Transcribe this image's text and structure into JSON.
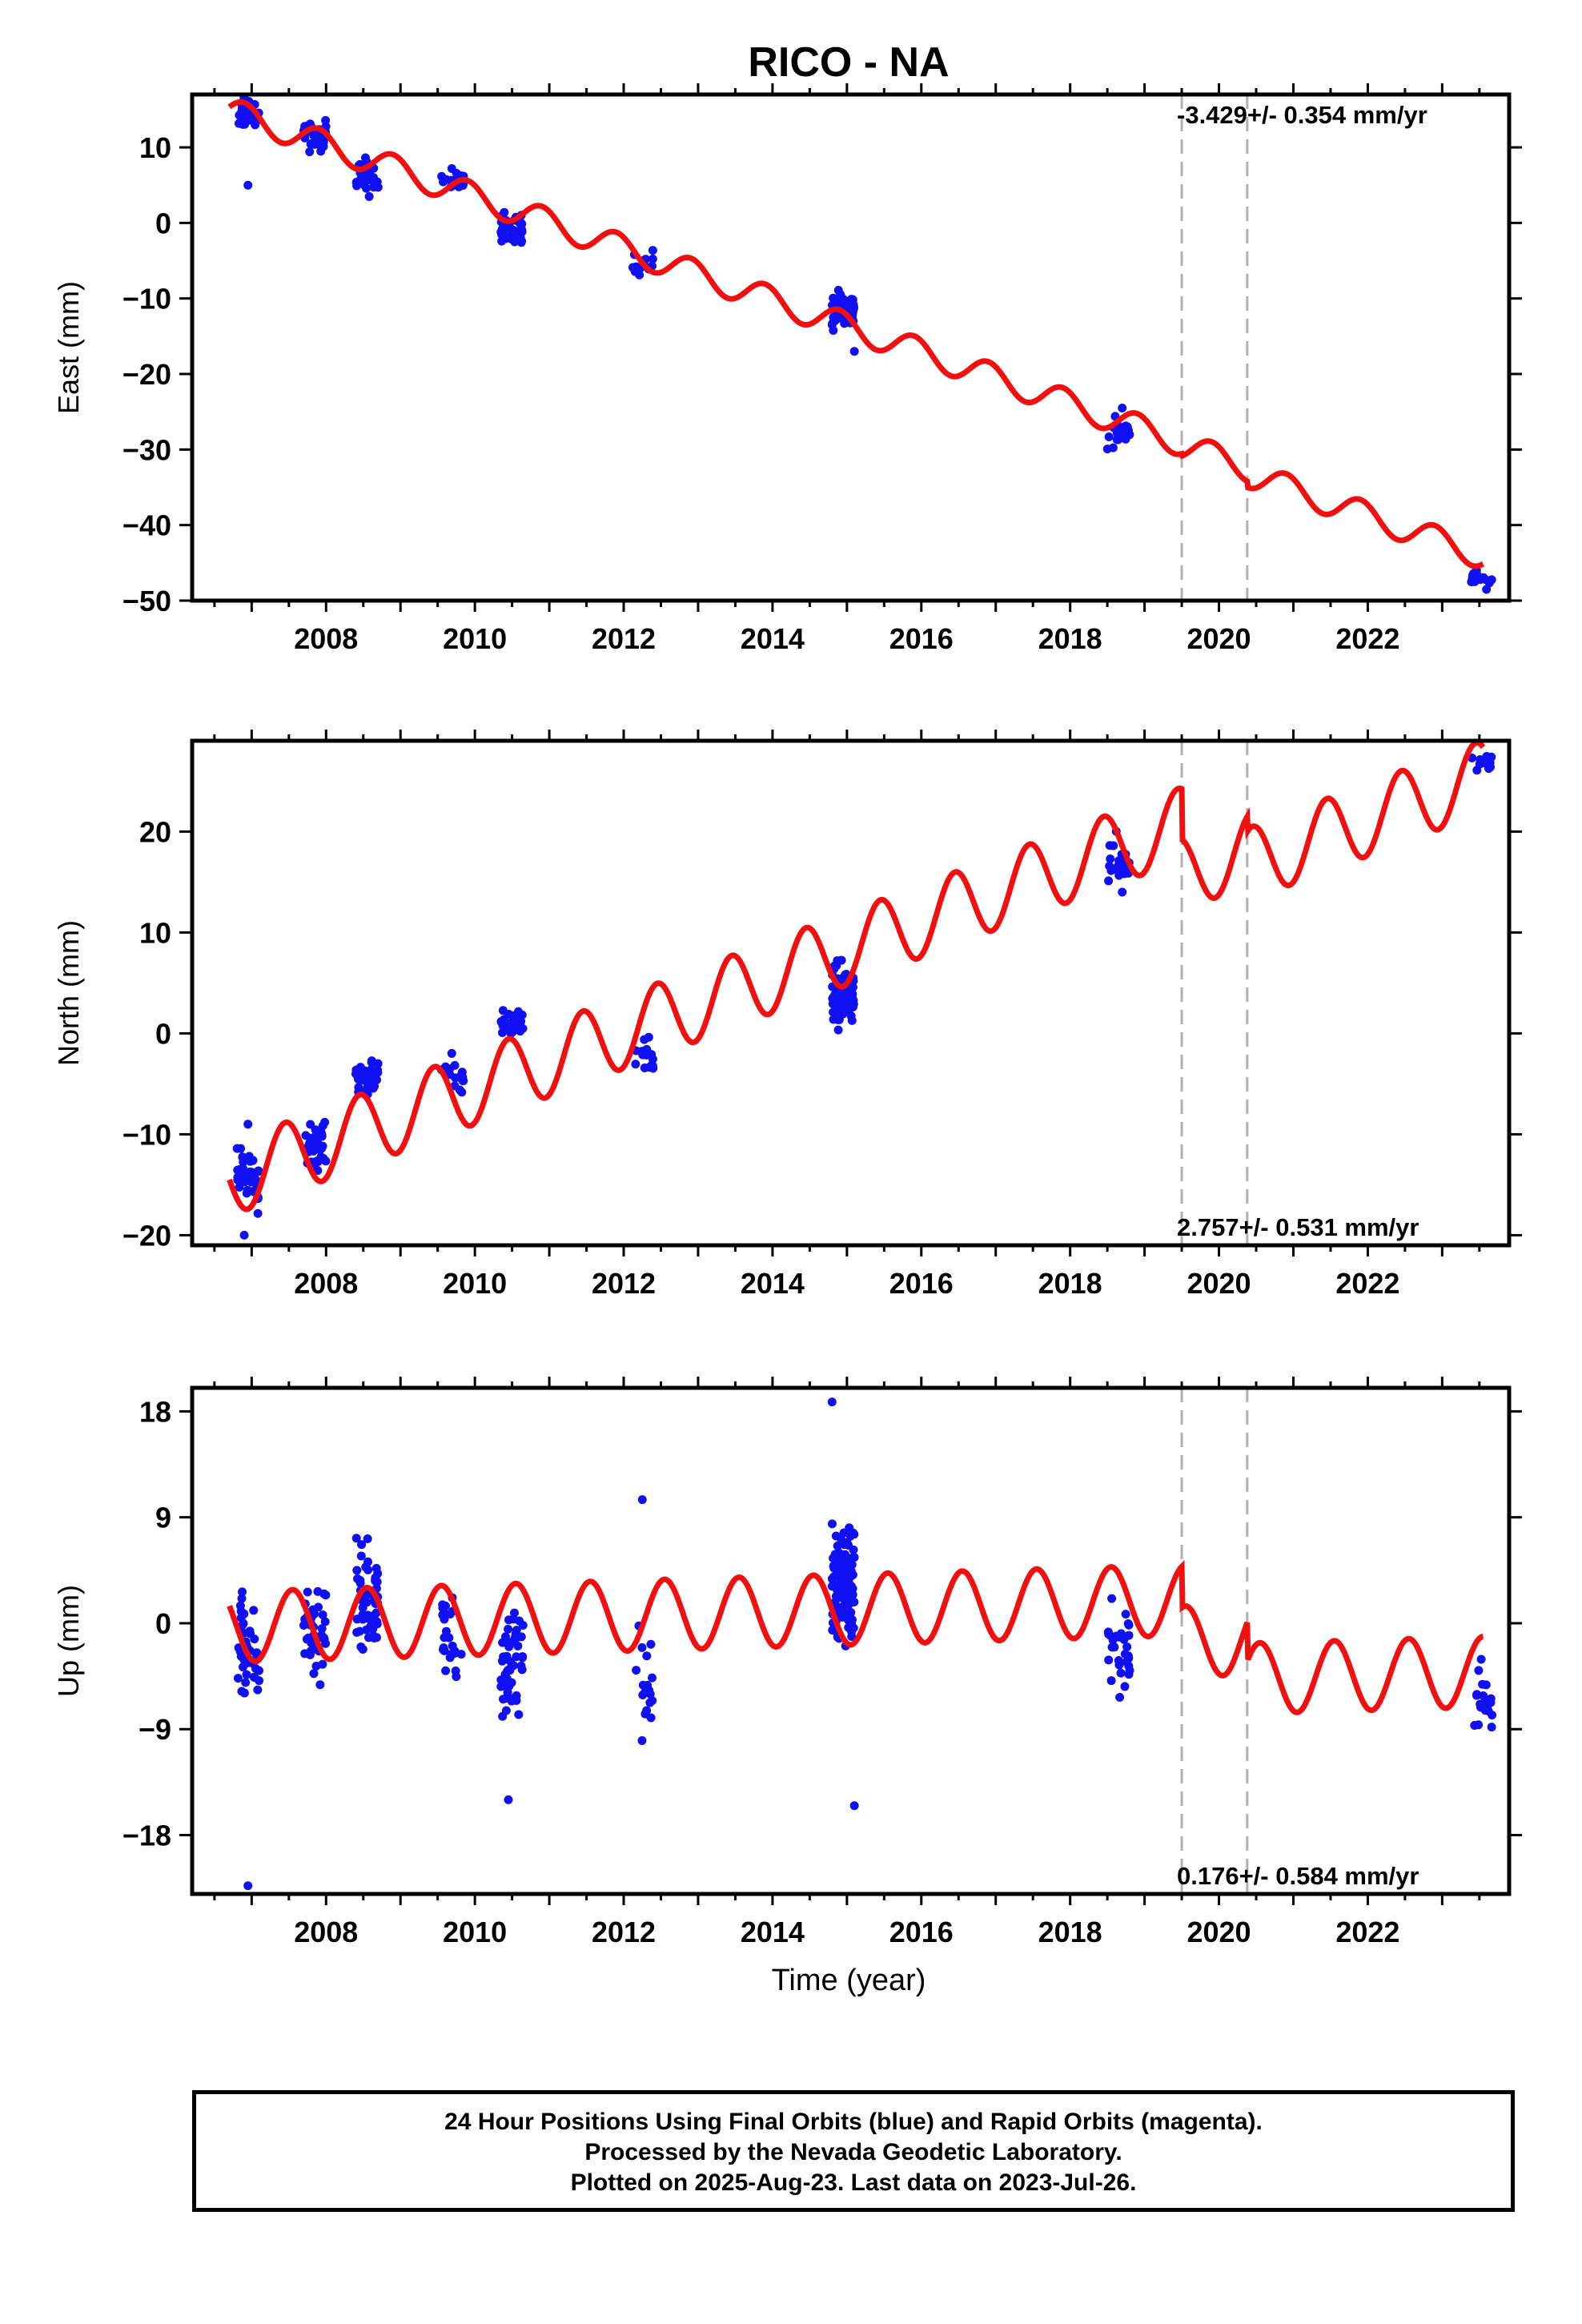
{
  "title": "RICO - NA",
  "xlabel": "Time (year)",
  "colors": {
    "data": "#1010f0",
    "model": "#f01010",
    "dashed": "#b0b0b0"
  },
  "caption": [
    "24 Hour Positions Using Final Orbits (blue) and Rapid Orbits (magenta).",
    "Processed by the Nevada Geodetic Laboratory.",
    "Plotted on 2025-Aug-23. Last data on 2023-Jul-26."
  ],
  "chart_data": [
    {
      "type": "scatter",
      "ylabel": "East (mm)",
      "rate_label": "-3.429+/- 0.354 mm/yr",
      "rate_position": "top-right",
      "xlim": [
        2006.2,
        2023.9
      ],
      "ylim": [
        -50,
        17
      ],
      "xticks": [
        2008,
        2010,
        2012,
        2014,
        2016,
        2018,
        2020,
        2022
      ],
      "yticks": [
        10,
        0,
        -10,
        -20,
        -30,
        -40,
        -50
      ],
      "ytick_labels": [
        "10",
        "0",
        "−10",
        "−20",
        "−30",
        "−40",
        "−50"
      ],
      "breaks": [
        2019.5,
        2020.38
      ],
      "model": {
        "rate": -3.429,
        "ref_epoch": 2006.7,
        "intercept": 14.8,
        "annual_amp": 1.8,
        "annual_peak": 0.9,
        "offsets": [
          {
            "epoch": 2019.5,
            "value": -0.3
          },
          {
            "epoch": 2020.38,
            "value": -0.8
          }
        ]
      },
      "clusters": [
        {
          "t": 2006.95,
          "center": 14.5,
          "spread": 1.5,
          "n": 40
        },
        {
          "t": 2007.85,
          "center": 11.5,
          "spread": 1.5,
          "n": 40
        },
        {
          "t": 2008.55,
          "center": 6.0,
          "spread": 2.0,
          "n": 35
        },
        {
          "t": 2009.7,
          "center": 5.5,
          "spread": 1.2,
          "n": 20
        },
        {
          "t": 2010.5,
          "center": -0.5,
          "spread": 1.5,
          "n": 40
        },
        {
          "t": 2012.25,
          "center": -5.5,
          "spread": 1.5,
          "n": 15
        },
        {
          "t": 2014.95,
          "center": -11.5,
          "spread": 2.0,
          "n": 80
        },
        {
          "t": 2018.65,
          "center": -28.0,
          "spread": 1.5,
          "n": 25
        },
        {
          "t": 2023.52,
          "center": -47.0,
          "spread": 1.0,
          "n": 15
        }
      ],
      "outliers": [
        {
          "x": 2006.95,
          "y": 5.0
        },
        {
          "x": 2015.1,
          "y": -17.0
        },
        {
          "x": 2018.7,
          "y": -24.5
        }
      ]
    },
    {
      "type": "scatter",
      "ylabel": "North (mm)",
      "rate_label": "2.757+/- 0.531 mm/yr",
      "rate_position": "bottom-right",
      "xlim": [
        2006.2,
        2023.9
      ],
      "ylim": [
        -21,
        29
      ],
      "xticks": [
        2008,
        2010,
        2012,
        2014,
        2016,
        2018,
        2020,
        2022
      ],
      "yticks": [
        20,
        10,
        0,
        -10,
        -20
      ],
      "ytick_labels": [
        "20",
        "10",
        "0",
        "−10",
        "−20"
      ],
      "breaks": [
        2019.5,
        2020.38
      ],
      "model": {
        "rate": 2.757,
        "ref_epoch": 2006.7,
        "intercept": -14.5,
        "annual_amp": 3.6,
        "annual_peak": 0.45,
        "offsets": [
          {
            "epoch": 2019.5,
            "value": -5.0
          },
          {
            "epoch": 2020.38,
            "value": -1.5
          }
        ]
      },
      "clusters": [
        {
          "t": 2006.95,
          "center": -14.0,
          "spread": 2.5,
          "n": 40
        },
        {
          "t": 2007.85,
          "center": -11.0,
          "spread": 2.0,
          "n": 40
        },
        {
          "t": 2008.55,
          "center": -4.5,
          "spread": 1.5,
          "n": 35
        },
        {
          "t": 2009.7,
          "center": -4.0,
          "spread": 1.5,
          "n": 20
        },
        {
          "t": 2010.5,
          "center": 1.0,
          "spread": 1.0,
          "n": 30
        },
        {
          "t": 2012.25,
          "center": -2.5,
          "spread": 1.5,
          "n": 15
        },
        {
          "t": 2014.95,
          "center": 3.5,
          "spread": 2.5,
          "n": 80
        },
        {
          "t": 2018.65,
          "center": 17.0,
          "spread": 2.0,
          "n": 25
        },
        {
          "t": 2023.52,
          "center": 27.0,
          "spread": 0.8,
          "n": 15
        }
      ],
      "outliers": [
        {
          "x": 2006.9,
          "y": -20.0
        },
        {
          "x": 2006.95,
          "y": -9.0
        },
        {
          "x": 2018.7,
          "y": 14.0
        }
      ]
    },
    {
      "type": "scatter",
      "ylabel": "Up (mm)",
      "rate_label": "0.176+/- 0.584 mm/yr",
      "rate_position": "bottom-right",
      "xlim": [
        2006.2,
        2023.9
      ],
      "ylim": [
        -23,
        20
      ],
      "xticks": [
        2008,
        2010,
        2012,
        2014,
        2016,
        2018,
        2020,
        2022
      ],
      "yticks": [
        18,
        9,
        0,
        -9,
        -18
      ],
      "ytick_labels": [
        "18",
        "9",
        "0",
        "−9",
        "−18"
      ],
      "breaks": [
        2019.5,
        2020.38
      ],
      "model": {
        "rate": 0.176,
        "ref_epoch": 2006.7,
        "intercept": -0.3,
        "annual_amp": 3.0,
        "annual_peak": 0.55,
        "offsets": [
          {
            "epoch": 2019.5,
            "value": -3.5
          },
          {
            "epoch": 2020.38,
            "value": -3.3
          }
        ]
      },
      "clusters": [
        {
          "t": 2006.95,
          "center": -2.0,
          "spread": 3.5,
          "n": 45
        },
        {
          "t": 2007.85,
          "center": -1.0,
          "spread": 3.0,
          "n": 40
        },
        {
          "t": 2008.55,
          "center": 2.0,
          "spread": 3.5,
          "n": 55
        },
        {
          "t": 2009.7,
          "center": -1.0,
          "spread": 3.0,
          "n": 25
        },
        {
          "t": 2010.5,
          "center": -3.5,
          "spread": 3.5,
          "n": 50
        },
        {
          "t": 2012.25,
          "center": -5.0,
          "spread": 3.5,
          "n": 20
        },
        {
          "t": 2014.95,
          "center": 3.5,
          "spread": 4.5,
          "n": 110
        },
        {
          "t": 2018.65,
          "center": -2.0,
          "spread": 3.5,
          "n": 30
        },
        {
          "t": 2023.52,
          "center": -6.0,
          "spread": 3.5,
          "n": 20
        }
      ],
      "outliers": [
        {
          "x": 2006.95,
          "y": -22.3
        },
        {
          "x": 2010.45,
          "y": -15.0
        },
        {
          "x": 2012.25,
          "y": 10.5
        },
        {
          "x": 2014.8,
          "y": 18.8
        },
        {
          "x": 2015.1,
          "y": -15.5
        }
      ]
    }
  ]
}
